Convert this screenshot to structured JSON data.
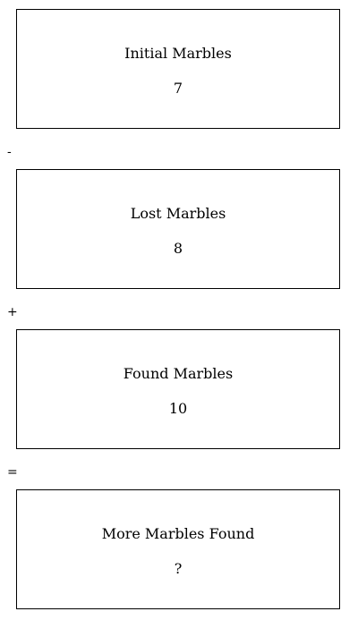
{
  "boxes": [
    {
      "label": "Initial Marbles",
      "value": "7"
    },
    {
      "label": "Lost Marbles",
      "value": "8"
    },
    {
      "label": "Found Marbles",
      "value": "10"
    },
    {
      "label": "More Marbles Found",
      "value": "?"
    }
  ],
  "operators": [
    "-",
    "+",
    "="
  ]
}
